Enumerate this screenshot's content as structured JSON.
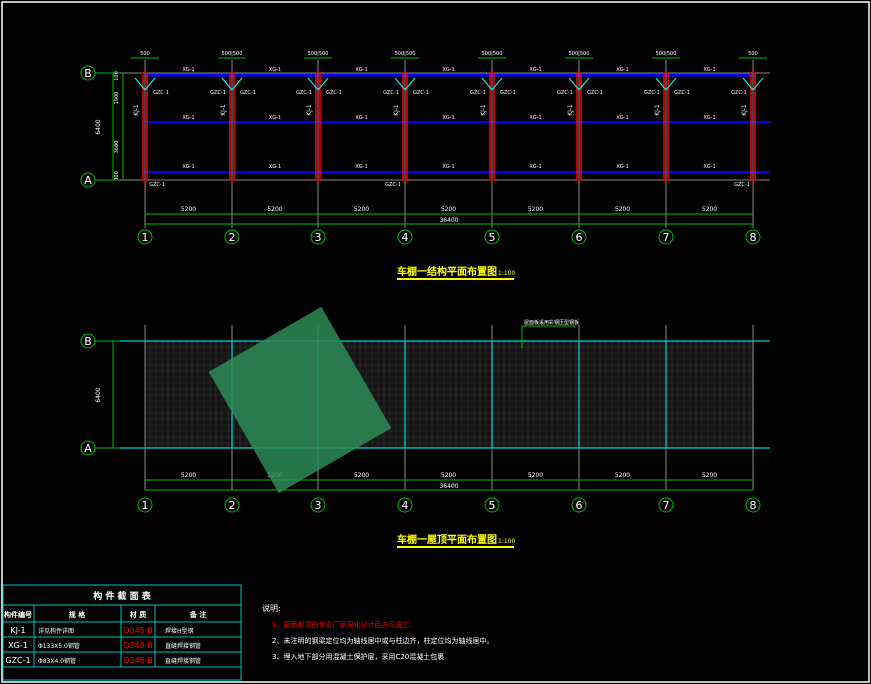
{
  "columns": [
    "1",
    "2",
    "3",
    "4",
    "5",
    "6",
    "7",
    "8"
  ],
  "rows": [
    "B",
    "A"
  ],
  "bay_dims": [
    "5200",
    "5200",
    "5200",
    "5200",
    "5200",
    "5200",
    "5200"
  ],
  "total_length": "36400",
  "total_width": "6400",
  "side_dims": [
    "100",
    "1900",
    "3600",
    "800"
  ],
  "top_offsets": [
    "500",
    "500|500",
    "500|500",
    "500|500",
    "500|500",
    "500|500",
    "500|500",
    "500"
  ],
  "labels": {
    "purlin": "XG-1",
    "frame": "KJ-1",
    "brace": "GZC-1"
  },
  "plan1": {
    "title": "车棚一结构平面布置图",
    "scale": "1:100"
  },
  "plan2": {
    "title": "车棚一屋顶平面布置图",
    "scale": "1:100",
    "note": "屋面板采用彩钢压型钢板"
  },
  "table": {
    "title": "构 件 截 面 表",
    "headers": [
      "构件编号",
      "规 格",
      "材 质",
      "备 注"
    ],
    "rows": [
      [
        "KJ-1",
        "详见构件详图",
        "Q345-B",
        "焊接H型钢"
      ],
      [
        "XG-1",
        "Φ133X5.0钢管",
        "Q345-B",
        "直缝焊接钢管"
      ],
      [
        "GZC-1",
        "Φ83X4.0钢管",
        "Q345-B",
        "直缝焊接钢管"
      ]
    ]
  },
  "notes": {
    "heading": "说明:",
    "items": [
      "1、屋面板须由专业厂家深化设计后方可施工。",
      "2、未注明的钢梁定位均为轴线居中或与柱边齐，柱定位均为轴线居中。",
      "3、埋入地下部分用混凝土保护层，采用C20混凝土包裹"
    ]
  },
  "colors": {
    "grid": "#00c000",
    "column": "#ff0000",
    "purlin": "#0000ff",
    "title": "#ffff00",
    "table_border": "#00c0c0",
    "roof_grid": "#808080",
    "axis_cyan": "#00ffff"
  }
}
